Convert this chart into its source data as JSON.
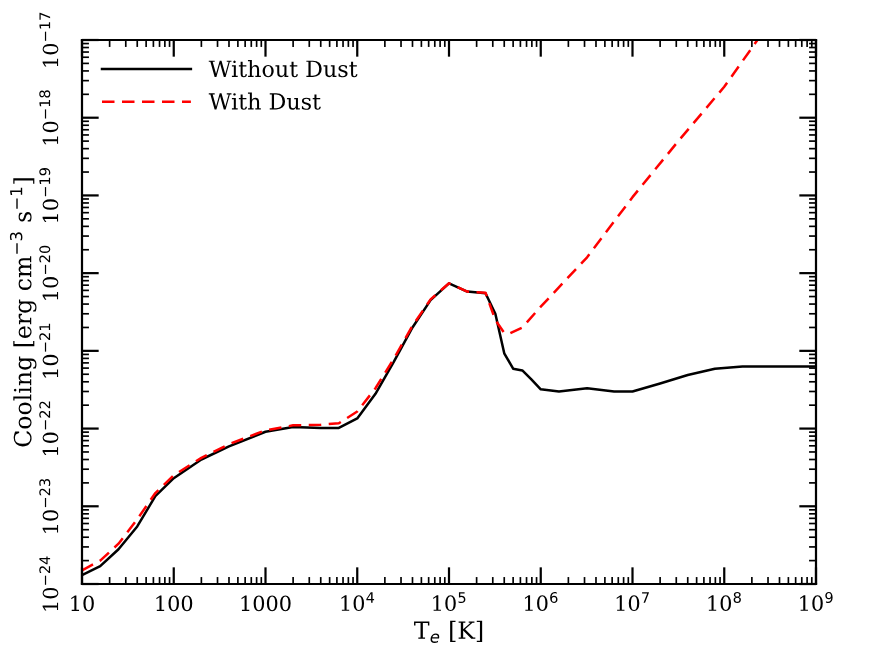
{
  "chart_data": {
    "type": "line",
    "xlabel": "T$_{e}$ [K]",
    "ylabel": "Cooling [erg cm$^{−3}$ s$^{−1}$]",
    "log": "xy",
    "legend": "top left",
    "grid": false,
    "xlim": [
      10,
      1000000000
    ],
    "ylim": [
      1e-24,
      1e-17
    ],
    "xticks": [
      10,
      100,
      1000,
      {
        "value": 10000,
        "label": "10$^{4}$"
      },
      {
        "value": 100000,
        "label": "10$^{5}$"
      },
      {
        "value": 1000000,
        "label": "10$^{6}$"
      },
      {
        "value": 10000000,
        "label": "10$^{7}$"
      },
      {
        "value": 100000000,
        "label": "10$^{8}$"
      },
      {
        "value": 1000000000,
        "label": "10$^{9}$"
      }
    ],
    "yticks": [
      {
        "value": 1e-24,
        "label": "10$^{−24}$"
      },
      {
        "value": 1e-23,
        "label": "10$^{−23}$"
      },
      {
        "value": 1e-22,
        "label": "10$^{−22}$"
      },
      {
        "value": 1e-21,
        "label": "10$^{−21}$"
      },
      {
        "value": 1e-20,
        "label": "10$^{−20}$"
      },
      {
        "value": 1e-19,
        "label": "10$^{−19}$"
      },
      {
        "value": 1e-18,
        "label": "10$^{−18}$"
      },
      {
        "value": 1e-17,
        "label": "10$^{−17}$"
      }
    ],
    "series": [
      {
        "name": "Without Dust",
        "color": "#000000",
        "line_style": "solid",
        "x": [
          10,
          15.8,
          25,
          40,
          63,
          100,
          200,
          400,
          1000,
          2000,
          4000,
          6300,
          10000,
          15800,
          25000,
          40000,
          63000,
          100000,
          158000,
          250000,
          320000,
          400000,
          500000,
          630000,
          790000,
          1000000,
          1580000,
          3200000,
          6300000,
          10000000,
          20000000,
          40000000,
          79000000,
          158000000,
          400000000,
          1000000000
        ],
        "values": [
          1.3e-24,
          1.7e-24,
          2.8e-24,
          5.5e-24,
          1.35e-23,
          2.3e-23,
          4e-23,
          5.9e-23,
          9.1e-23,
          1.05e-22,
          1.02e-22,
          1.02e-22,
          1.35e-22,
          2.8e-22,
          7.2e-22,
          2e-21,
          4.5e-21,
          7.4e-21,
          5.8e-21,
          5.5e-21,
          3e-21,
          9.3e-22,
          5.9e-22,
          5.6e-22,
          4.3e-22,
          3.2e-22,
          3e-22,
          3.3e-22,
          3e-22,
          3e-22,
          3.8e-22,
          4.9e-22,
          5.9e-22,
          6.3e-22,
          6.3e-22,
          6.3e-22
        ]
      },
      {
        "name": "With Dust",
        "color": "#ff0000",
        "line_style": "dashed",
        "x": [
          10,
          15.8,
          25,
          40,
          63,
          100,
          200,
          400,
          1000,
          2000,
          4000,
          6300,
          10000,
          15800,
          25000,
          40000,
          63000,
          100000,
          158000,
          250000,
          320000,
          400000,
          450000,
          630000,
          1000000,
          3200000,
          10000000,
          32000000,
          100000000,
          230000000
        ],
        "values": [
          1.5e-24,
          2e-24,
          3.3e-24,
          6.8e-24,
          1.48e-23,
          2.5e-23,
          4.2e-23,
          6.3e-23,
          9.5e-23,
          1.1e-22,
          1.12e-22,
          1.17e-22,
          1.66e-22,
          3.3e-22,
          7.9e-22,
          2.1e-21,
          4.6e-21,
          7.4e-21,
          5.8e-21,
          5.6e-21,
          2.5e-21,
          1.7e-21,
          1.66e-21,
          2e-21,
          3.7e-21,
          1.6e-20,
          9.5e-20,
          5.1e-19,
          2.5e-18,
          1e-17
        ]
      }
    ]
  }
}
